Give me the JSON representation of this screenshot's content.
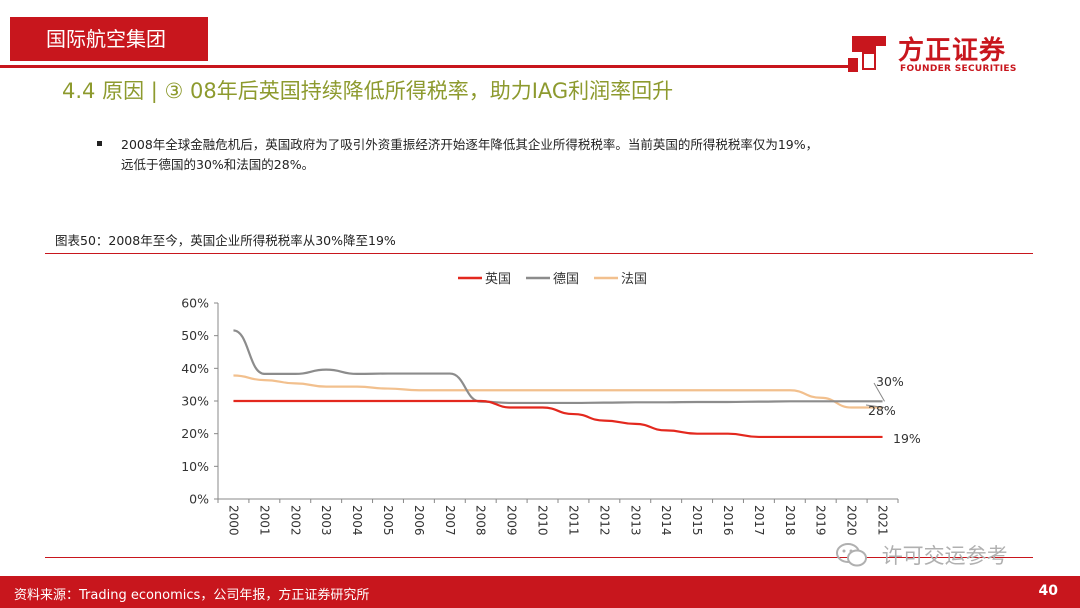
{
  "header": {
    "section_tab": "国际航空集团",
    "logo_cn": "方正证券",
    "logo_en": "FOUNDER SECURITIES"
  },
  "title": "4.4 原因 | ③ 08年后英国持续降低所得税率，助力IAG利润率回升",
  "bullet": {
    "line1": "2008年全球金融危机后，英国政府为了吸引外资重振经济开始逐年降低其企业所得税税率。当前英国的所得税税率仅为19%，",
    "line2": "远低于德国的30%和法国的28%。"
  },
  "figure_caption": "图表50：2008年至今，英国企业所得税税率从30%降至19%",
  "footer": {
    "source": "资料来源：Trading economics，公司年报，方正证券研究所",
    "page": "40"
  },
  "watermark": "许可交运参考",
  "colors": {
    "brand_red": "#c8161d",
    "title_olive": "#8d9a2e",
    "uk": "#e3281e",
    "de": "#8c8c8c",
    "fr": "#f2c08e"
  },
  "chart_data": {
    "type": "line",
    "title": "",
    "xlabel": "",
    "ylabel": "",
    "x": [
      "2000",
      "2001",
      "2002",
      "2003",
      "2004",
      "2005",
      "2006",
      "2007",
      "2008",
      "2009",
      "2010",
      "2011",
      "2012",
      "2013",
      "2014",
      "2015",
      "2016",
      "2017",
      "2018",
      "2019",
      "2020",
      "2021"
    ],
    "y_ticks": [
      "0%",
      "10%",
      "20%",
      "30%",
      "40%",
      "50%",
      "60%"
    ],
    "ylim": [
      0,
      60
    ],
    "grid": false,
    "legend_position": "top-center",
    "series": [
      {
        "name": "英国",
        "color": "#e3281e",
        "values": [
          30,
          30,
          30,
          30,
          30,
          30,
          30,
          30,
          30,
          28,
          28,
          26,
          24,
          23,
          21,
          20,
          20,
          19,
          19,
          19,
          19,
          19
        ],
        "end_label": "19%"
      },
      {
        "name": "德国",
        "color": "#8c8c8c",
        "values": [
          51.6,
          38.3,
          38.3,
          39.6,
          38.3,
          38.4,
          38.4,
          38.4,
          29.8,
          29.4,
          29.4,
          29.4,
          29.5,
          29.6,
          29.6,
          29.7,
          29.7,
          29.8,
          29.9,
          29.9,
          29.9,
          29.9
        ],
        "end_label": "30%"
      },
      {
        "name": "法国",
        "color": "#f2c08e",
        "values": [
          37.8,
          36.4,
          35.4,
          34.4,
          34.4,
          33.8,
          33.3,
          33.3,
          33.3,
          33.3,
          33.3,
          33.3,
          33.3,
          33.3,
          33.3,
          33.3,
          33.3,
          33.3,
          33.3,
          31,
          28,
          28
        ],
        "end_label": "28%"
      }
    ]
  }
}
